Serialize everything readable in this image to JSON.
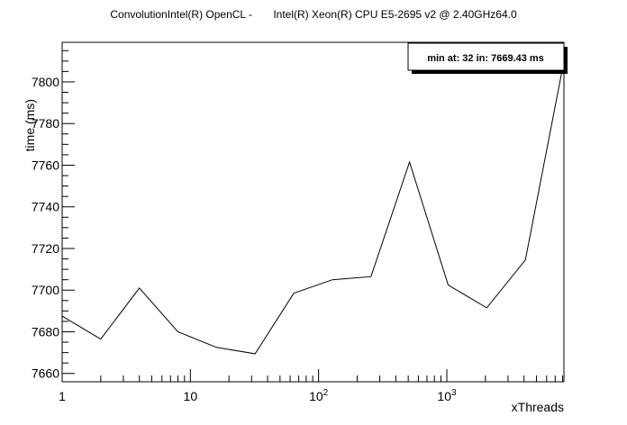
{
  "chart_data": {
    "type": "line",
    "title": "ConvolutionIntel(R) OpenCL -       Intel(R) Xeon(R) CPU E5-2695 v2 @ 2.40GHz64.0",
    "xlabel": "xThreads",
    "ylabel": "time (ms)",
    "xscale": "log",
    "xlim": [
      1,
      8192
    ],
    "ylim": [
      7656,
      7819
    ],
    "x_ticks": [
      {
        "value": 1,
        "base": "1",
        "exp": ""
      },
      {
        "value": 10,
        "base": "10",
        "exp": ""
      },
      {
        "value": 100,
        "base": "10",
        "exp": "2"
      },
      {
        "value": 1000,
        "base": "10",
        "exp": "3"
      }
    ],
    "y_ticks": [
      7660,
      7680,
      7700,
      7720,
      7740,
      7760,
      7780,
      7800
    ],
    "grid": false,
    "legend_placement": "top-right",
    "annotation": "min at: 32 in: 7669.43 ms",
    "series": [
      {
        "x": [
          1,
          2,
          4,
          8,
          16,
          32,
          64,
          128,
          256,
          512,
          1024,
          2048,
          4096,
          8192
        ],
        "values": [
          7687.5,
          7676.5,
          7701,
          7680,
          7672.5,
          7669.43,
          7698.5,
          7705,
          7706.5,
          7761.5,
          7702.5,
          7691.5,
          7714.5,
          7810
        ]
      }
    ]
  }
}
